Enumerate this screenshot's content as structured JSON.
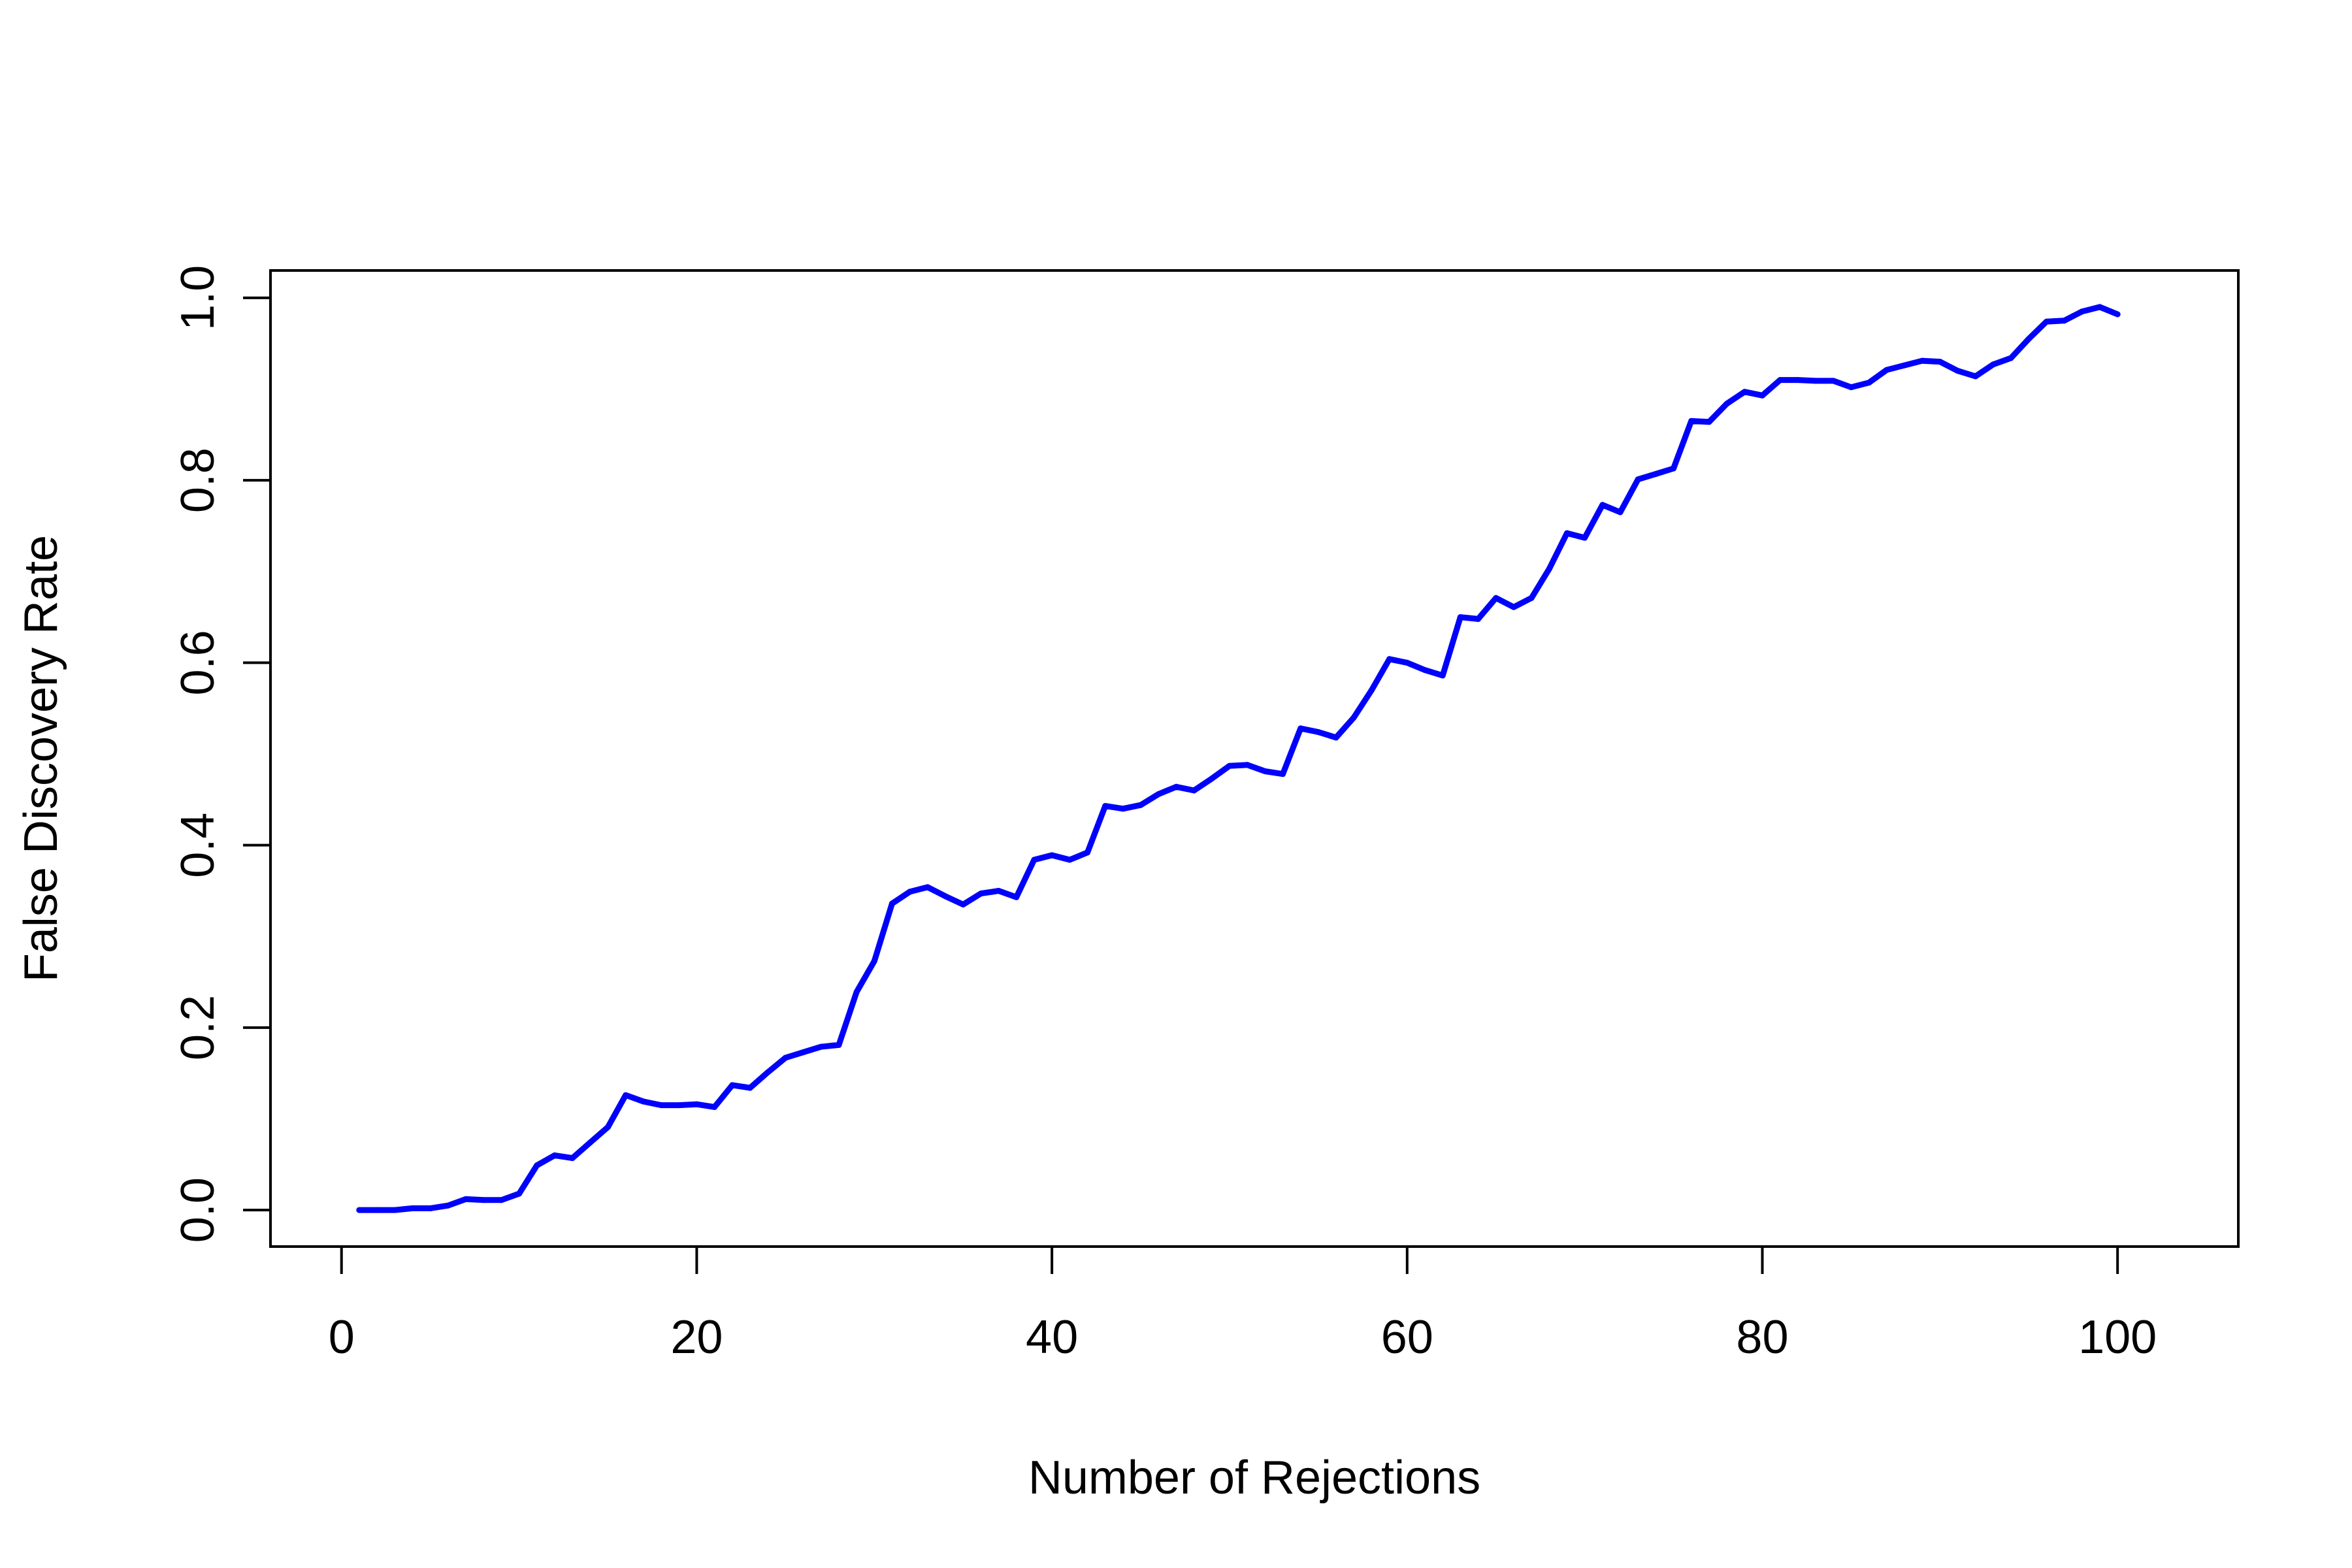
{
  "chart_data": {
    "type": "line",
    "title": "",
    "xlabel": "Number of Rejections",
    "ylabel": "False Discovery Rate",
    "xlim": [
      -4,
      106.8
    ],
    "ylim": [
      -0.04,
      1.03
    ],
    "x_ticks": [
      0,
      20,
      40,
      60,
      80,
      100
    ],
    "x_tick_labels": [
      "0",
      "20",
      "40",
      "60",
      "80",
      "100"
    ],
    "y_ticks": [
      0.0,
      0.2,
      0.4,
      0.6,
      0.8,
      1.0
    ],
    "y_tick_labels": [
      "0.0",
      "0.2",
      "0.4",
      "0.6",
      "0.8",
      "1.0"
    ],
    "grid": false,
    "legend": "none",
    "series": [
      {
        "color": "#0000ff",
        "x": [
          1,
          2,
          3,
          4,
          5,
          6,
          7,
          8,
          9,
          10,
          11,
          12,
          13,
          14,
          15,
          16,
          17,
          18,
          19,
          20,
          21,
          22,
          23,
          24,
          25,
          26,
          27,
          28,
          29,
          30,
          31,
          32,
          33,
          34,
          35,
          36,
          37,
          38,
          39,
          40,
          41,
          42,
          43,
          44,
          45,
          46,
          47,
          48,
          49,
          50,
          51,
          52,
          53,
          54,
          55,
          56,
          57,
          58,
          59,
          60,
          61,
          62,
          63,
          64,
          65,
          66,
          67,
          68,
          69,
          70,
          71,
          72,
          73,
          74,
          75,
          76,
          77,
          78,
          79,
          80,
          81,
          82,
          83,
          84,
          85,
          86,
          87,
          88,
          89,
          90,
          91,
          92,
          93,
          94,
          95,
          96,
          97,
          98,
          99,
          100
        ],
        "y": [
          0.0,
          0.0,
          0.0,
          0.002,
          0.002,
          0.005,
          0.012,
          0.011,
          0.011,
          0.018,
          0.049,
          0.06,
          0.057,
          0.074,
          0.091,
          0.126,
          0.119,
          0.115,
          0.115,
          0.116,
          0.113,
          0.137,
          0.134,
          0.151,
          0.167,
          0.173,
          0.179,
          0.181,
          0.239,
          0.273,
          0.336,
          0.349,
          0.354,
          0.344,
          0.335,
          0.347,
          0.35,
          0.343,
          0.384,
          0.389,
          0.384,
          0.392,
          0.443,
          0.44,
          0.444,
          0.456,
          0.464,
          0.46,
          0.473,
          0.487,
          0.488,
          0.481,
          0.478,
          0.528,
          0.524,
          0.518,
          0.54,
          0.57,
          0.604,
          0.6,
          0.592,
          0.586,
          0.65,
          0.648,
          0.671,
          0.661,
          0.671,
          0.703,
          0.742,
          0.737,
          0.773,
          0.765,
          0.801,
          0.807,
          0.813,
          0.865,
          0.864,
          0.884,
          0.897,
          0.893,
          0.91,
          0.91,
          0.909,
          0.909,
          0.902,
          0.907,
          0.921,
          0.926,
          0.931,
          0.93,
          0.92,
          0.914,
          0.927,
          0.934,
          0.955,
          0.974,
          0.975,
          0.985,
          0.99,
          0.982
        ]
      }
    ]
  }
}
